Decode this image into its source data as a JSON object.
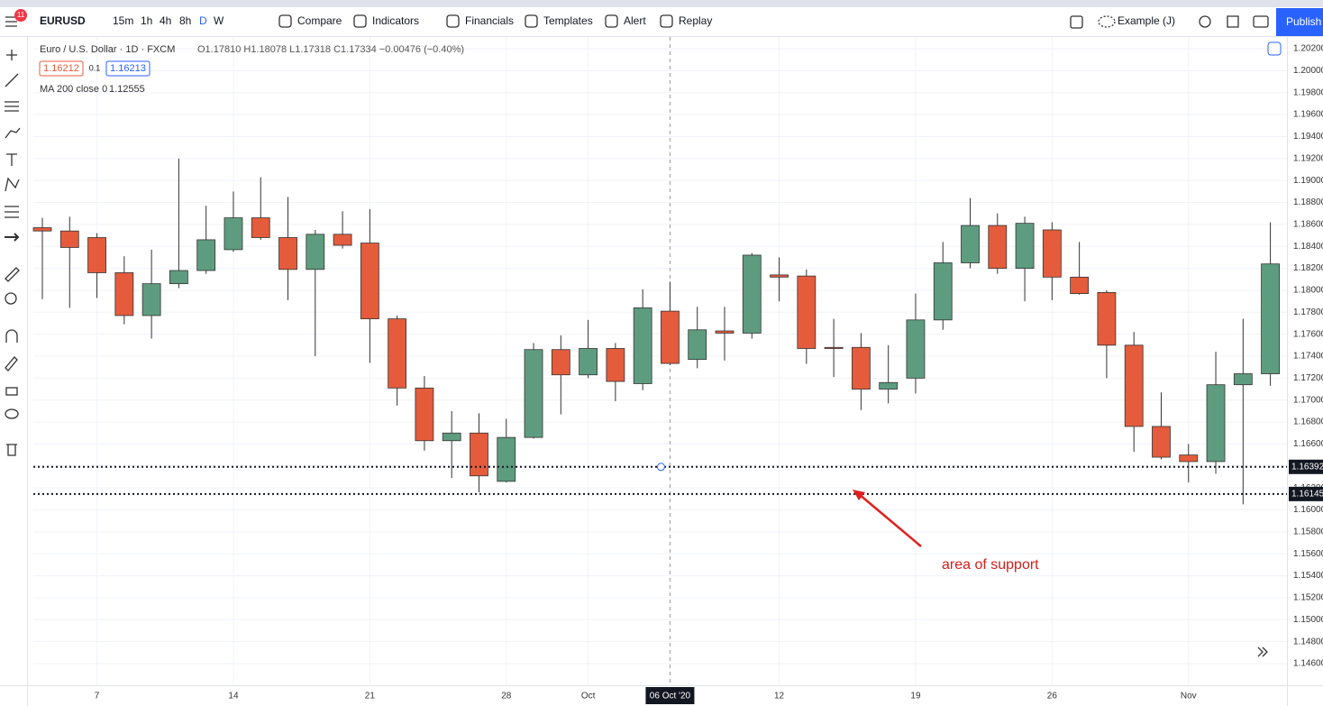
{
  "toolbar": {
    "symbol": "EURUSD",
    "badge": "11",
    "intervals": [
      "15m",
      "1h",
      "4h",
      "8h",
      "D",
      "W"
    ],
    "buttons": [
      "Compare",
      "Indicators",
      "Financials",
      "Templates",
      "Alert",
      "Replay"
    ],
    "layout": "Example (J)",
    "publish": "Publish"
  },
  "legend": {
    "title": "Euro / U.S. Dollar · 1D · FXCM",
    "ohlc": "O1.17810 H1.18078 L1.17318 C1.17334 −0.00476 (−0.40%)",
    "sell": "1.16212",
    "spread": "0.1",
    "buy": "1.16213",
    "indicator": "MA 200 close 0",
    "indicator_value": "1.12555"
  },
  "chart_data": {
    "type": "candlestick",
    "up_color": "#5e9c7f",
    "down_color": "#e45c3c",
    "grid": true,
    "categories": [
      null,
      null,
      "7",
      null,
      null,
      null,
      null,
      "14",
      null,
      null,
      null,
      null,
      "21",
      null,
      null,
      null,
      null,
      "28",
      null,
      null,
      "Oct",
      null,
      null,
      null,
      null,
      null,
      null,
      "12",
      null,
      null,
      null,
      null,
      "19",
      null,
      null,
      null,
      null,
      "26",
      null,
      null,
      null,
      null,
      "Nov",
      null,
      null,
      null
    ],
    "open": [
      1.1857,
      1.1854,
      1.1848,
      1.1816,
      1.1777,
      1.1806,
      1.1818,
      1.1837,
      1.1866,
      1.1848,
      1.1819,
      1.1851,
      1.1843,
      1.1774,
      1.1711,
      1.1663,
      1.167,
      1.1626,
      1.1666,
      1.1746,
      1.1723,
      1.1747,
      1.1715,
      1.1781,
      1.1737,
      1.1763,
      1.1761,
      1.1814,
      1.1813,
      1.1748,
      1.1748,
      1.171,
      1.172,
      1.1773,
      1.1825,
      1.1859,
      1.182,
      1.1855,
      1.1812,
      1.1798,
      1.175,
      1.1676,
      1.165,
      1.1644,
      1.1714,
      1.1724
    ],
    "high": [
      1.1866,
      1.1867,
      1.1852,
      1.1831,
      1.1837,
      1.192,
      1.1877,
      1.189,
      1.1903,
      1.1885,
      1.1855,
      1.1872,
      1.1874,
      1.1777,
      1.1722,
      1.169,
      1.1688,
      1.1683,
      1.1752,
      1.1759,
      1.1773,
      1.1752,
      1.1801,
      1.18078,
      1.1785,
      1.1785,
      1.1834,
      1.183,
      1.1819,
      1.1774,
      1.1761,
      1.175,
      1.1797,
      1.1844,
      1.1884,
      1.187,
      1.1867,
      1.1862,
      1.1844,
      1.18,
      1.1762,
      1.1707,
      1.166,
      1.1744,
      1.1774,
      1.1862
    ],
    "low": [
      1.1792,
      1.1784,
      1.1793,
      1.1769,
      1.1756,
      1.1802,
      1.1815,
      1.1835,
      1.1846,
      1.1791,
      1.174,
      1.1838,
      1.1734,
      1.1695,
      1.1654,
      1.1629,
      1.1616,
      1.1625,
      1.1665,
      1.1687,
      1.172,
      1.1699,
      1.1709,
      1.17318,
      1.1729,
      1.1736,
      1.1756,
      1.179,
      1.1733,
      1.1721,
      1.1691,
      1.1697,
      1.1706,
      1.1764,
      1.182,
      1.1815,
      1.179,
      1.1791,
      1.1796,
      1.172,
      1.1653,
      1.1646,
      1.1625,
      1.1633,
      1.1605,
      1.1713
    ],
    "close": [
      1.1854,
      1.1839,
      1.1816,
      1.1777,
      1.1806,
      1.1818,
      1.1846,
      1.1866,
      1.1848,
      1.1819,
      1.1851,
      1.1841,
      1.1774,
      1.1711,
      1.1663,
      1.167,
      1.1631,
      1.1666,
      1.1746,
      1.1723,
      1.1747,
      1.1717,
      1.1784,
      1.17334,
      1.1764,
      1.1761,
      1.1832,
      1.1812,
      1.1747,
      1.1747,
      1.171,
      1.1716,
      1.1773,
      1.1825,
      1.1859,
      1.182,
      1.1861,
      1.1812,
      1.1797,
      1.175,
      1.1676,
      1.1648,
      1.1644,
      1.1714,
      1.1724,
      1.1824
    ],
    "ylim": [
      1.14403,
      1.20307
    ],
    "yticks": [
      {
        "value": 1.146,
        "label": "1.14600"
      },
      {
        "value": 1.148,
        "label": "1.14800"
      },
      {
        "value": 1.15,
        "label": "1.15000"
      },
      {
        "value": 1.152,
        "label": "1.15200"
      },
      {
        "value": 1.154,
        "label": "1.15400"
      },
      {
        "value": 1.156,
        "label": "1.15600"
      },
      {
        "value": 1.158,
        "label": "1.15800"
      },
      {
        "value": 1.16,
        "label": "1.16000"
      },
      {
        "value": 1.162,
        "label": "1.16200"
      },
      {
        "value": 1.164,
        "label": "1.16400"
      },
      {
        "value": 1.166,
        "label": "1.16600"
      },
      {
        "value": 1.168,
        "label": "1.16800"
      },
      {
        "value": 1.17,
        "label": "1.17000"
      },
      {
        "value": 1.172,
        "label": "1.17200"
      },
      {
        "value": 1.174,
        "label": "1.17400"
      },
      {
        "value": 1.176,
        "label": "1.17600"
      },
      {
        "value": 1.178,
        "label": "1.17800"
      },
      {
        "value": 1.18,
        "label": "1.18000"
      },
      {
        "value": 1.182,
        "label": "1.18200"
      },
      {
        "value": 1.184,
        "label": "1.18400"
      },
      {
        "value": 1.186,
        "label": "1.18600"
      },
      {
        "value": 1.188,
        "label": "1.18800"
      },
      {
        "value": 1.19,
        "label": "1.19000"
      },
      {
        "value": 1.192,
        "label": "1.19200"
      },
      {
        "value": 1.194,
        "label": "1.19400"
      },
      {
        "value": 1.196,
        "label": "1.19600"
      },
      {
        "value": 1.198,
        "label": "1.19800"
      },
      {
        "value": 1.2,
        "label": "1.20000"
      },
      {
        "value": 1.202,
        "label": "1.20200"
      }
    ],
    "hlines": [
      {
        "value": 1.16392,
        "label": "1.16392"
      },
      {
        "value": 1.16145,
        "label": "1.16145"
      }
    ],
    "crosshair": {
      "index": 23,
      "label": "06 Oct '20"
    },
    "annotation": "area of support"
  }
}
